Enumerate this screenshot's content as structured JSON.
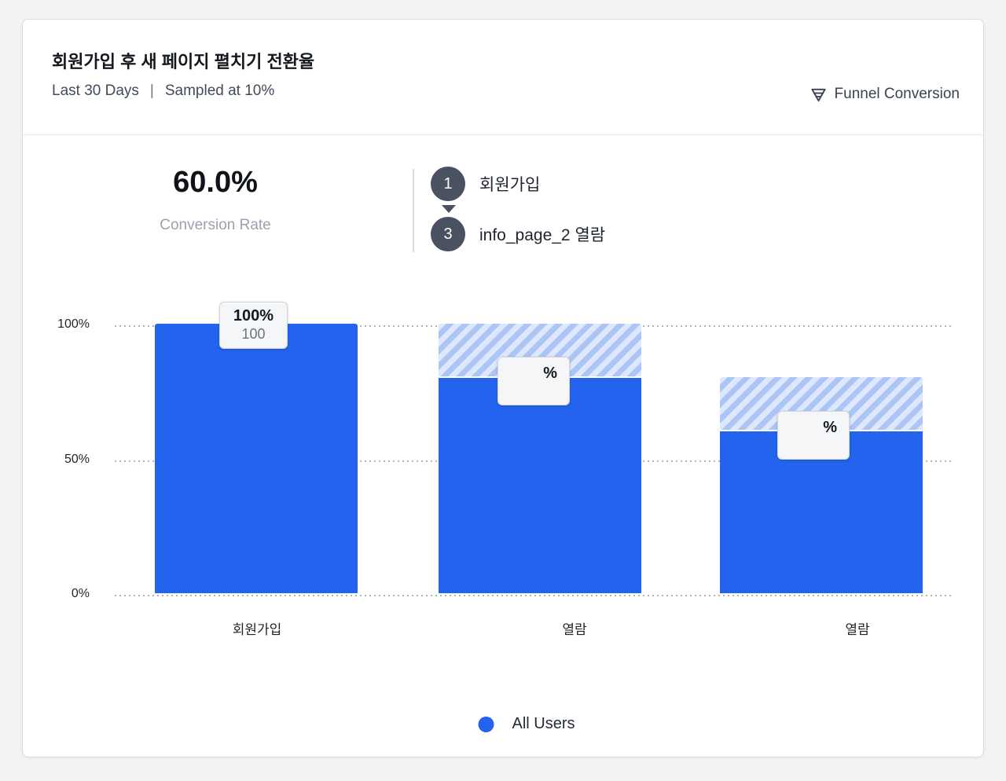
{
  "header": {
    "title": "회원가입 후 새 페이지 펼치기 전환율",
    "date_range": "Last 30 Days",
    "separator": "|",
    "sampling": "Sampled at 10%",
    "chart_type_label": "Funnel Conversion",
    "chart_type_icon": "funnel-icon"
  },
  "summary": {
    "conversion_rate": "60.0%",
    "conversion_rate_label": "Conversion Rate",
    "steps": [
      {
        "index": "1",
        "label": "회원가입"
      },
      {
        "index": "3",
        "label": "info_page_2 열람"
      }
    ]
  },
  "chart_data": {
    "type": "bar",
    "title": "Funnel conversion by step",
    "categories": [
      "회원가입",
      "열람",
      "열람"
    ],
    "series": [
      {
        "name": "All Users",
        "values": [
          100,
          80,
          60
        ]
      }
    ],
    "prev_step_values": [
      100,
      100,
      80
    ],
    "ylim": [
      0,
      100
    ],
    "yticks": [
      "100%",
      "50%",
      "0%"
    ],
    "grid": "dotted horizontal",
    "legend_position": "bottom-center",
    "bar_labels": [
      {
        "percent": "100%",
        "count": "100"
      },
      {
        "percent": "%",
        "count": ""
      },
      {
        "percent": "%",
        "count": ""
      }
    ],
    "legend": [
      {
        "label": "All Users",
        "color": "#2363ee"
      }
    ]
  },
  "colors": {
    "bar_solid": "#2363ee",
    "bar_hatch_light": "#dde8fc",
    "bar_hatch_dark": "#abc5f6",
    "step_circle": "#4a5160",
    "page_background": "#f2f3f5",
    "muted_text": "#9aa2ad"
  }
}
